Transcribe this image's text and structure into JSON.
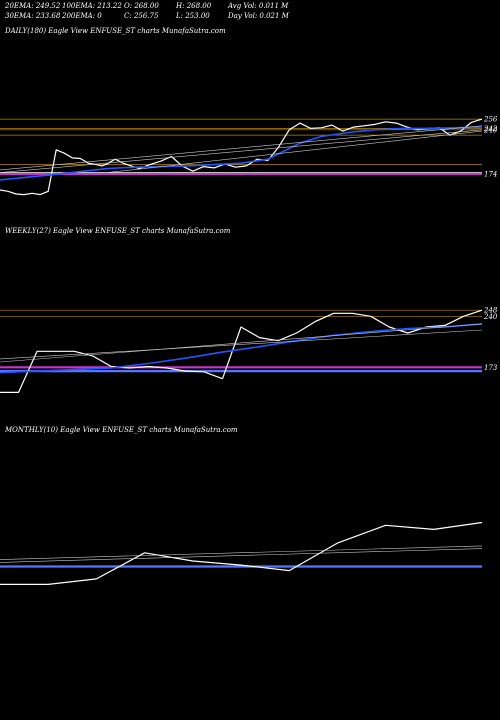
{
  "header": {
    "row1": [
      {
        "label": "20EMA: 249.52"
      },
      {
        "label": "100EMA: 213.22"
      },
      {
        "label": "O: 268.00"
      },
      {
        "label": "H: 268.00"
      },
      {
        "label": "Avg Vol: 0.011 M"
      }
    ],
    "row2": [
      {
        "label": "30EMA: 233.68"
      },
      {
        "label": "200EMA: 0"
      },
      {
        "label": "C: 256.75"
      },
      {
        "label": "L: 253.00"
      },
      {
        "label": "Day Vol: 0.021 M"
      }
    ]
  },
  "chart_data": [
    {
      "type": "line",
      "title": "DAILY(180) Eagle   View  ENFUSE_ST charts MunafaSutra.com",
      "ylim": [
        135,
        292
      ],
      "level_labels": [
        "256",
        "242",
        "240",
        "174"
      ],
      "levels": [
        {
          "value": 256,
          "color": "#b8860b",
          "label": true
        },
        {
          "value": 242,
          "color": "#b8860b",
          "label": true
        },
        {
          "value": 240,
          "color": "#b8860b",
          "label": true
        },
        {
          "value": 232,
          "color": "#b8860b",
          "label": false
        },
        {
          "value": 188,
          "color": "#b8860b",
          "label": false
        },
        {
          "value": 174,
          "color": "#cc33cc",
          "label": true
        },
        {
          "value": 176,
          "color": "#ffffff",
          "label": false
        }
      ],
      "series": [
        {
          "color": "#ffffff",
          "width": 1.2,
          "x": [
            0,
            3,
            6,
            9,
            12,
            15,
            18,
            21,
            24,
            27,
            30,
            33,
            36,
            38,
            40,
            43,
            46,
            49,
            52,
            56,
            60,
            64,
            68,
            72,
            76,
            80,
            84,
            88,
            92,
            96,
            100,
            104,
            108,
            112,
            116,
            120,
            124,
            128,
            132,
            136,
            140,
            144,
            148,
            152,
            156,
            160,
            164,
            168,
            172,
            176,
            180
          ],
          "values": [
            150,
            148,
            144,
            143,
            145,
            143,
            148,
            210,
            205,
            198,
            197,
            190,
            188,
            186,
            189,
            196,
            190,
            186,
            182,
            188,
            193,
            200,
            186,
            178,
            185,
            183,
            189,
            184,
            186,
            196,
            194,
            214,
            240,
            250,
            242,
            243,
            247,
            238,
            244,
            246,
            248,
            252,
            250,
            244,
            240,
            242,
            243,
            232,
            238,
            251,
            256
          ]
        },
        {
          "color": "#2255ff",
          "width": 1.6,
          "x": [
            0,
            20,
            38,
            40,
            50,
            60,
            70,
            80,
            90,
            100,
            108,
            112,
            120,
            130,
            140,
            150,
            160,
            170,
            180
          ],
          "values": [
            165,
            173,
            181,
            182,
            184,
            185,
            186,
            188,
            190,
            196,
            212,
            220,
            230,
            236,
            240,
            242,
            242,
            243,
            244
          ]
        },
        {
          "color": "#c8c8c8",
          "width": 0.6,
          "x": [
            0,
            180
          ],
          "values": [
            176,
            240
          ]
        },
        {
          "color": "#c8c8c8",
          "width": 0.6,
          "x": [
            0,
            180
          ],
          "values": [
            180,
            246
          ]
        },
        {
          "color": "#c8c8c8",
          "width": 0.6,
          "x": [
            40,
            180
          ],
          "values": [
            176,
            238
          ]
        }
      ]
    },
    {
      "type": "line",
      "title": "WEEKLY(27) Eagle   View  ENFUSE_ST charts MunafaSutra.com",
      "ylim": [
        130,
        268
      ],
      "level_labels": [
        "248",
        "240",
        "173"
      ],
      "levels": [
        {
          "value": 248,
          "color": "#b8860b",
          "label": true
        },
        {
          "value": 240,
          "color": "#b8860b",
          "label": true
        },
        {
          "value": 173,
          "color": "#cc33cc",
          "label": true
        },
        {
          "value": 168,
          "color": "#5577ff",
          "label": false
        }
      ],
      "series": [
        {
          "color": "#ffffff",
          "width": 1.2,
          "x": [
            0,
            1,
            2,
            3,
            4,
            5,
            6,
            7,
            8,
            9,
            10,
            11,
            12,
            13,
            14,
            15,
            16,
            17,
            18,
            19,
            20,
            21,
            22,
            23,
            24,
            25,
            26
          ],
          "values": [
            140,
            140,
            194,
            194,
            194,
            188,
            174,
            172,
            174,
            172,
            168,
            167,
            158,
            226,
            212,
            208,
            218,
            233,
            244,
            244,
            240,
            226,
            218,
            226,
            228,
            240,
            248
          ]
        },
        {
          "color": "#2255ff",
          "width": 1.6,
          "x": [
            0,
            4,
            6,
            8,
            10,
            12,
            14,
            16,
            18,
            20,
            22,
            24,
            26
          ],
          "values": [
            166,
            170,
            172,
            178,
            185,
            193,
            200,
            208,
            215,
            220,
            224,
            226,
            230
          ]
        },
        {
          "color": "#c8c8c8",
          "width": 0.6,
          "x": [
            0,
            26
          ],
          "values": [
            184,
            222
          ]
        },
        {
          "color": "#c8c8c8",
          "width": 0.6,
          "x": [
            0,
            26
          ],
          "values": [
            180,
            230
          ]
        }
      ]
    },
    {
      "type": "line",
      "title": "MONTHLY(10) Eagle   View  ENFUSE_ST charts MunafaSutra.com",
      "ylim": [
        120,
        280
      ],
      "level_labels": [],
      "levels": [
        {
          "value": 176,
          "color": "#5577ff",
          "label": false
        }
      ],
      "series": [
        {
          "color": "#ffffff",
          "width": 1.2,
          "x": [
            0,
            1,
            2,
            3,
            4,
            5,
            6,
            7,
            8,
            9,
            10
          ],
          "values": [
            150,
            150,
            158,
            196,
            184,
            178,
            170,
            210,
            236,
            230,
            240
          ]
        },
        {
          "color": "#c8c8c8",
          "width": 0.6,
          "x": [
            0,
            10
          ],
          "values": [
            182,
            202
          ]
        },
        {
          "color": "#c8c8c8",
          "width": 0.6,
          "x": [
            0,
            10
          ],
          "values": [
            186,
            206
          ]
        }
      ]
    }
  ]
}
